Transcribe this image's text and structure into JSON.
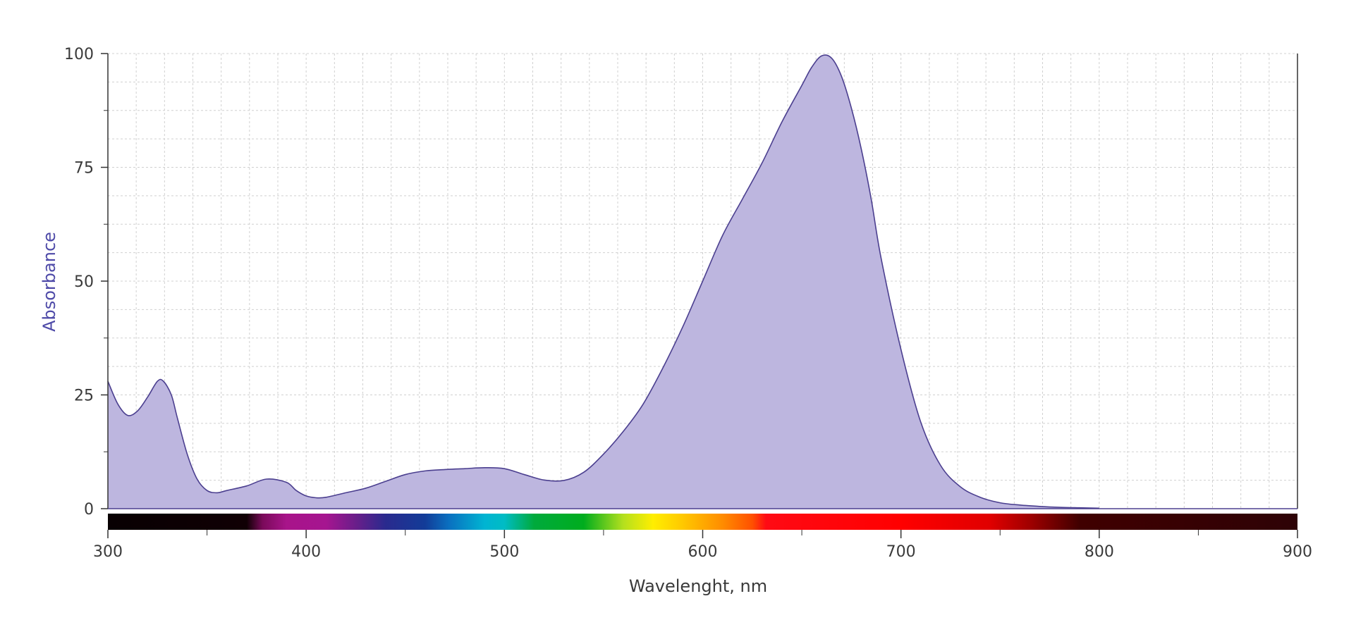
{
  "chart_data": {
    "type": "area",
    "title": "",
    "xlabel": "Wavelenght, nm",
    "ylabel": "Absorbance",
    "xlim": [
      300,
      900
    ],
    "ylim": [
      0,
      100
    ],
    "x_ticks": [
      300,
      400,
      500,
      600,
      700,
      800,
      900
    ],
    "y_ticks": [
      0,
      25,
      50,
      75,
      100
    ],
    "grid": true,
    "legend": "none",
    "colors": {
      "fill": "#bdb6df",
      "line": "#4b3f8f",
      "ylabel": "#4e4aa8",
      "grid": "#d0d0d0",
      "axis": "#333333"
    },
    "spectrum_bar": {
      "range": [
        300,
        900
      ],
      "stops": [
        {
          "nm": 300,
          "color": "#080002"
        },
        {
          "nm": 370,
          "color": "#100004"
        },
        {
          "nm": 378,
          "color": "#7a0a5a"
        },
        {
          "nm": 390,
          "color": "#a8148a"
        },
        {
          "nm": 410,
          "color": "#a61590"
        },
        {
          "nm": 425,
          "color": "#6a1e8a"
        },
        {
          "nm": 440,
          "color": "#2a2a8e"
        },
        {
          "nm": 460,
          "color": "#123c98"
        },
        {
          "nm": 472,
          "color": "#0a70c0"
        },
        {
          "nm": 490,
          "color": "#00b4d2"
        },
        {
          "nm": 500,
          "color": "#00bcc4"
        },
        {
          "nm": 515,
          "color": "#00aa3c"
        },
        {
          "nm": 540,
          "color": "#00ad1e"
        },
        {
          "nm": 560,
          "color": "#b4e01e"
        },
        {
          "nm": 575,
          "color": "#ffee00"
        },
        {
          "nm": 590,
          "color": "#ffc800"
        },
        {
          "nm": 610,
          "color": "#ff8c00"
        },
        {
          "nm": 625,
          "color": "#ff5000"
        },
        {
          "nm": 632,
          "color": "#ff0a14"
        },
        {
          "nm": 700,
          "color": "#ff0000"
        },
        {
          "nm": 745,
          "color": "#e00000"
        },
        {
          "nm": 765,
          "color": "#a00000"
        },
        {
          "nm": 790,
          "color": "#400000"
        },
        {
          "nm": 900,
          "color": "#2e0206"
        }
      ]
    },
    "series": [
      {
        "x": [
          300,
          305,
          310,
          315,
          320,
          325,
          328,
          332,
          335,
          340,
          345,
          350,
          355,
          360,
          370,
          380,
          390,
          395,
          400,
          405,
          410,
          420,
          430,
          440,
          450,
          460,
          470,
          480,
          490,
          500,
          510,
          520,
          530,
          540,
          550,
          560,
          570,
          580,
          590,
          600,
          610,
          620,
          630,
          640,
          650,
          655,
          660,
          665,
          670,
          675,
          680,
          685,
          690,
          700,
          710,
          720,
          730,
          740,
          750,
          760,
          770,
          780,
          790,
          800
        ],
        "values": [
          28,
          23,
          20.5,
          21.5,
          24.5,
          28,
          28,
          25,
          20,
          12,
          6.5,
          4,
          3.5,
          4,
          5,
          6.5,
          5.8,
          4,
          2.8,
          2.4,
          2.5,
          3.5,
          4.5,
          6,
          7.5,
          8.3,
          8.6,
          8.8,
          9,
          8.8,
          7.5,
          6.3,
          6.2,
          8,
          12,
          17,
          23,
          31,
          40,
          50,
          60,
          68,
          76,
          85,
          93,
          97,
          99.5,
          99,
          95,
          88,
          79,
          68,
          55,
          35,
          19,
          9.5,
          4.8,
          2.5,
          1.3,
          0.8,
          0.5,
          0.3,
          0.2,
          0.1
        ]
      }
    ]
  }
}
